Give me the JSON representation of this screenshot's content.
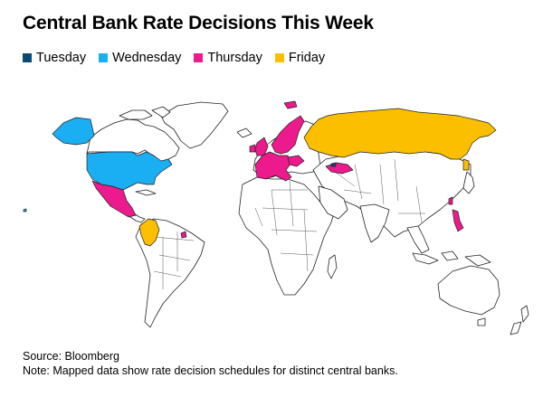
{
  "title": "Central Bank Rate Decisions This Week",
  "legend": [
    {
      "label": "Tuesday",
      "color": "#0b4a72"
    },
    {
      "label": "Wednesday",
      "color": "#1aaff2"
    },
    {
      "label": "Thursday",
      "color": "#ec1a8c"
    },
    {
      "label": "Friday",
      "color": "#fbbf00"
    }
  ],
  "footer": {
    "source": "Source: Bloomberg",
    "note": "Note: Mapped data show rate decision schedules for distinct central banks."
  }
}
